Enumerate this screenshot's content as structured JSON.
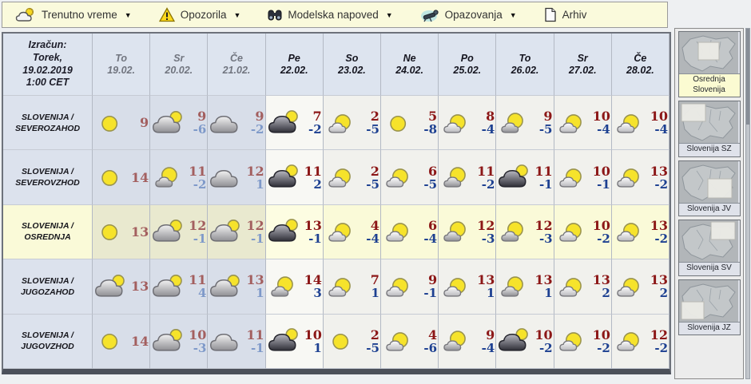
{
  "icons": {
    "dropdown": "▼"
  },
  "toolbar": {
    "items": [
      {
        "label": "Trenutno vreme",
        "icon": "cloud-sun-icon",
        "has_dropdown": true
      },
      {
        "label": "Opozorila",
        "icon": "warning-icon",
        "has_dropdown": true
      },
      {
        "label": "Modelska napoved",
        "icon": "binoculars-icon",
        "has_dropdown": true
      },
      {
        "label": "Opazovanja",
        "icon": "telescope-icon",
        "has_dropdown": true
      },
      {
        "label": "Arhiv",
        "icon": "document-icon",
        "has_dropdown": false
      }
    ]
  },
  "table": {
    "corner": {
      "line1": "Izračun:",
      "line2": "Torek,",
      "line3": "19.02.2019",
      "line4": "1:00 CET"
    },
    "days": [
      {
        "name": "To",
        "date": "19.02.",
        "state": "past"
      },
      {
        "name": "Sr",
        "date": "20.02.",
        "state": "past"
      },
      {
        "name": "Če",
        "date": "21.02.",
        "state": "past"
      },
      {
        "name": "Pe",
        "date": "22.02.",
        "state": "current"
      },
      {
        "name": "So",
        "date": "23.02.",
        "state": "future"
      },
      {
        "name": "Ne",
        "date": "24.02.",
        "state": "future"
      },
      {
        "name": "Po",
        "date": "25.02.",
        "state": "future"
      },
      {
        "name": "To",
        "date": "26.02.",
        "state": "future"
      },
      {
        "name": "Sr",
        "date": "27.02.",
        "state": "future"
      },
      {
        "name": "Če",
        "date": "28.02.",
        "state": "future"
      }
    ],
    "rows": [
      {
        "region_line1": "SLOVENIJA /",
        "region_line2": "SEVEROZAHOD",
        "highlight": false,
        "cells": [
          {
            "icon": "sun",
            "max": "9",
            "min": ""
          },
          {
            "icon": "cloud-sun",
            "max": "9",
            "min": "-6"
          },
          {
            "icon": "cloud",
            "max": "9",
            "min": "-2"
          },
          {
            "icon": "dark-cloud-sun",
            "max": "7",
            "min": "-2"
          },
          {
            "icon": "sun-small-cloud",
            "max": "2",
            "min": "-5"
          },
          {
            "icon": "sun",
            "max": "5",
            "min": "-8"
          },
          {
            "icon": "sun-small-cloud",
            "max": "8",
            "min": "-4"
          },
          {
            "icon": "sun-cloud",
            "max": "9",
            "min": "-5"
          },
          {
            "icon": "sun-small-cloud",
            "max": "10",
            "min": "-4"
          },
          {
            "icon": "sun-small-cloud",
            "max": "10",
            "min": "-4"
          }
        ]
      },
      {
        "region_line1": "SLOVENIJA /",
        "region_line2": "SEVEROVZHOD",
        "highlight": false,
        "cells": [
          {
            "icon": "sun",
            "max": "14",
            "min": ""
          },
          {
            "icon": "sun-cloud",
            "max": "11",
            "min": "-2"
          },
          {
            "icon": "cloud",
            "max": "12",
            "min": "1"
          },
          {
            "icon": "dark-cloud-sun",
            "max": "11",
            "min": "2"
          },
          {
            "icon": "sun-small-cloud",
            "max": "2",
            "min": "-5"
          },
          {
            "icon": "sun-small-cloud",
            "max": "6",
            "min": "-5"
          },
          {
            "icon": "sun-cloud",
            "max": "11",
            "min": "-2"
          },
          {
            "icon": "dark-cloud-sun",
            "max": "11",
            "min": "-1"
          },
          {
            "icon": "sun-small-cloud",
            "max": "10",
            "min": "-1"
          },
          {
            "icon": "sun-small-cloud",
            "max": "13",
            "min": "-2"
          }
        ]
      },
      {
        "region_line1": "SLOVENIJA /",
        "region_line2": "OSREDNJA",
        "highlight": true,
        "cells": [
          {
            "icon": "sun",
            "max": "13",
            "min": ""
          },
          {
            "icon": "cloud-sun",
            "max": "12",
            "min": "-1"
          },
          {
            "icon": "cloud-sun",
            "max": "12",
            "min": "-1"
          },
          {
            "icon": "dark-cloud-sun",
            "max": "13",
            "min": "-1"
          },
          {
            "icon": "sun-small-cloud",
            "max": "4",
            "min": "-4"
          },
          {
            "icon": "sun-small-cloud",
            "max": "6",
            "min": "-4"
          },
          {
            "icon": "sun-cloud",
            "max": "12",
            "min": "-3"
          },
          {
            "icon": "sun-cloud",
            "max": "12",
            "min": "-3"
          },
          {
            "icon": "sun-small-cloud",
            "max": "10",
            "min": "-2"
          },
          {
            "icon": "sun-small-cloud",
            "max": "13",
            "min": "-2"
          }
        ]
      },
      {
        "region_line1": "SLOVENIJA /",
        "region_line2": "JUGOZAHOD",
        "highlight": false,
        "cells": [
          {
            "icon": "cloud-sun",
            "max": "13",
            "min": ""
          },
          {
            "icon": "cloud-sun",
            "max": "11",
            "min": "4"
          },
          {
            "icon": "cloud-sun",
            "max": "13",
            "min": "1"
          },
          {
            "icon": "sun-cloud",
            "max": "14",
            "min": "3"
          },
          {
            "icon": "sun-small-cloud",
            "max": "7",
            "min": "1"
          },
          {
            "icon": "sun-small-cloud",
            "max": "9",
            "min": "-1"
          },
          {
            "icon": "sun-small-cloud",
            "max": "13",
            "min": "1"
          },
          {
            "icon": "sun-cloud",
            "max": "13",
            "min": "1"
          },
          {
            "icon": "sun-small-cloud",
            "max": "13",
            "min": "2"
          },
          {
            "icon": "sun-small-cloud",
            "max": "13",
            "min": "2"
          }
        ]
      },
      {
        "region_line1": "SLOVENIJA /",
        "region_line2": "JUGOVZHOD",
        "highlight": false,
        "cells": [
          {
            "icon": "sun",
            "max": "14",
            "min": ""
          },
          {
            "icon": "cloud-sun",
            "max": "10",
            "min": "-3"
          },
          {
            "icon": "cloud",
            "max": "11",
            "min": "-1"
          },
          {
            "icon": "dark-cloud-sun",
            "max": "10",
            "min": "1"
          },
          {
            "icon": "sun",
            "max": "2",
            "min": "-5"
          },
          {
            "icon": "sun-small-cloud",
            "max": "4",
            "min": "-6"
          },
          {
            "icon": "sun-cloud",
            "max": "9",
            "min": "-4"
          },
          {
            "icon": "dark-cloud-sun",
            "max": "10",
            "min": "-2"
          },
          {
            "icon": "sun-small-cloud",
            "max": "10",
            "min": "-2"
          },
          {
            "icon": "sun-small-cloud",
            "max": "12",
            "min": "-2"
          }
        ]
      }
    ]
  },
  "sidebar": {
    "maps": [
      {
        "label": "Osrednja Slovenija",
        "selected": true,
        "region": "center"
      },
      {
        "label": "Slovenija SZ",
        "selected": false,
        "region": "nw"
      },
      {
        "label": "Slovenija JV",
        "selected": false,
        "region": "se"
      },
      {
        "label": "Slovenija SV",
        "selected": false,
        "region": "ne"
      },
      {
        "label": "Slovenija JZ",
        "selected": false,
        "region": "sw"
      }
    ]
  },
  "colors": {
    "toolbar_bg": "#fafadc",
    "header_bg": "#dde4ef",
    "past_cell_bg": "#d8dee9",
    "forecast_cell_bg": "#f1f1ed",
    "highlight_row_bg": "#fafad8",
    "temp_max": "#8c1717",
    "temp_min": "#1d4091",
    "temp_max_past": "#a35f5f",
    "temp_min_past": "#7e99c9",
    "sun_yellow": "#f6e32b"
  }
}
